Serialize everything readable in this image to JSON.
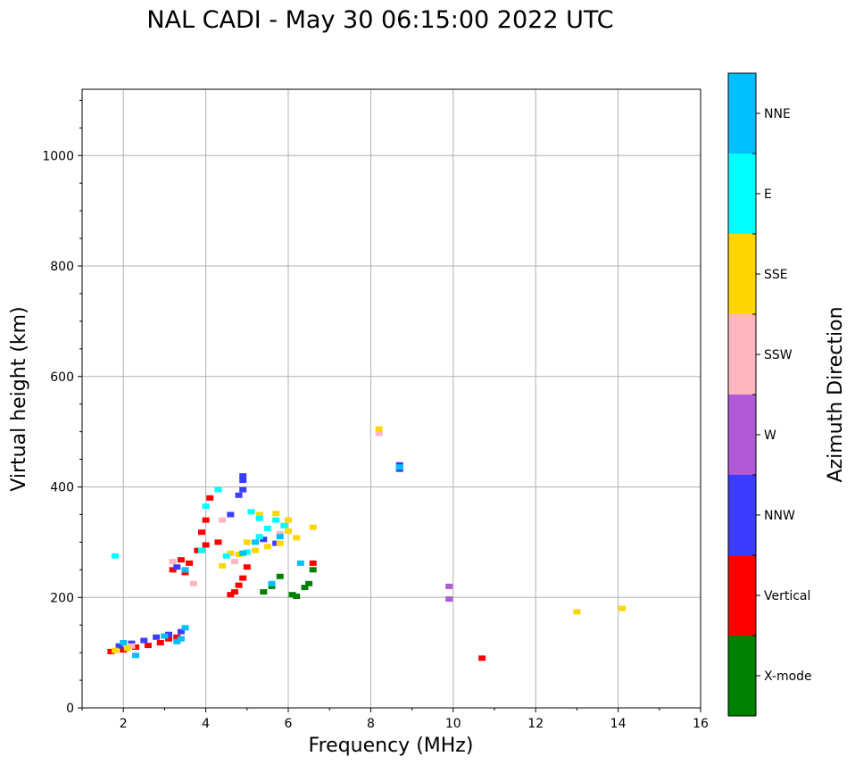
{
  "chart_data": {
    "type": "scatter",
    "title": "NAL CADI - May 30 06:15:00 2022 UTC",
    "xlabel": "Frequency (MHz)",
    "ylabel": "Virtual height (km)",
    "xlim": [
      1,
      16
    ],
    "ylim": [
      0,
      1120
    ],
    "xticks": [
      2,
      4,
      6,
      8,
      10,
      12,
      14,
      16
    ],
    "yticks": [
      0,
      200,
      400,
      600,
      800,
      1000
    ],
    "grid": true,
    "colorbar": {
      "label": "Azimuth Direction",
      "categories": [
        {
          "name": "X-mode",
          "color": "#008000"
        },
        {
          "name": "Vertical",
          "color": "#ff0000"
        },
        {
          "name": "NNW",
          "color": "#3c3cff"
        },
        {
          "name": "W",
          "color": "#b05ad6"
        },
        {
          "name": "SSW",
          "color": "#ffb6c1"
        },
        {
          "name": "SSE",
          "color": "#ffd700"
        },
        {
          "name": "E",
          "color": "#00ffff"
        },
        {
          "name": "NNE",
          "color": "#00bfff"
        }
      ]
    },
    "series": [
      {
        "name": "X-mode",
        "points": [
          [
            5.4,
            210
          ],
          [
            5.6,
            220
          ],
          [
            5.8,
            238
          ],
          [
            6.1,
            205
          ],
          [
            6.4,
            218
          ],
          [
            6.6,
            250
          ],
          [
            6.5,
            225
          ],
          [
            6.2,
            202
          ]
        ]
      },
      {
        "name": "Vertical",
        "points": [
          [
            1.7,
            102
          ],
          [
            2.0,
            105
          ],
          [
            2.3,
            110
          ],
          [
            2.6,
            113
          ],
          [
            2.9,
            118
          ],
          [
            3.1,
            125
          ],
          [
            3.3,
            128
          ],
          [
            3.4,
            268
          ],
          [
            3.6,
            262
          ],
          [
            3.8,
            285
          ],
          [
            4.0,
            295
          ],
          [
            4.1,
            380
          ],
          [
            4.0,
            340
          ],
          [
            4.6,
            205
          ],
          [
            4.7,
            210
          ],
          [
            4.8,
            222
          ],
          [
            4.9,
            235
          ],
          [
            5.0,
            255
          ],
          [
            10.7,
            90
          ],
          [
            6.6,
            262
          ],
          [
            3.5,
            245
          ],
          [
            3.2,
            250
          ],
          [
            4.3,
            300
          ],
          [
            3.9,
            318
          ]
        ]
      },
      {
        "name": "NNW",
        "points": [
          [
            1.9,
            112
          ],
          [
            2.2,
            117
          ],
          [
            2.5,
            122
          ],
          [
            2.8,
            128
          ],
          [
            3.1,
            133
          ],
          [
            3.4,
            138
          ],
          [
            3.3,
            255
          ],
          [
            4.8,
            385
          ],
          [
            4.9,
            395
          ],
          [
            4.9,
            412
          ],
          [
            4.9,
            420
          ],
          [
            8.7,
            432
          ],
          [
            8.7,
            440
          ],
          [
            4.6,
            350
          ],
          [
            5.4,
            305
          ],
          [
            5.7,
            298
          ]
        ]
      },
      {
        "name": "W",
        "points": [
          [
            9.9,
            197
          ],
          [
            9.9,
            220
          ]
        ]
      },
      {
        "name": "SSW",
        "points": [
          [
            8.2,
            497
          ],
          [
            4.4,
            340
          ],
          [
            5.8,
            315
          ],
          [
            4.7,
            265
          ],
          [
            3.7,
            225
          ],
          [
            3.2,
            265
          ],
          [
            2.2,
            112
          ]
        ]
      },
      {
        "name": "SSE",
        "points": [
          [
            13.0,
            174
          ],
          [
            14.1,
            180
          ],
          [
            8.2,
            505
          ],
          [
            4.6,
            280
          ],
          [
            4.8,
            278
          ],
          [
            5.0,
            300
          ],
          [
            5.2,
            285
          ],
          [
            5.5,
            292
          ],
          [
            5.8,
            298
          ],
          [
            6.0,
            320
          ],
          [
            6.2,
            308
          ],
          [
            6.6,
            327
          ],
          [
            5.3,
            350
          ],
          [
            5.7,
            352
          ],
          [
            6.0,
            340
          ],
          [
            1.8,
            104
          ],
          [
            2.1,
            108
          ],
          [
            4.4,
            257
          ]
        ]
      },
      {
        "name": "E",
        "points": [
          [
            4.3,
            395
          ],
          [
            5.1,
            355
          ],
          [
            5.3,
            343
          ],
          [
            5.5,
            325
          ],
          [
            5.7,
            340
          ],
          [
            5.9,
            330
          ],
          [
            4.0,
            365
          ],
          [
            1.8,
            275
          ],
          [
            4.5,
            275
          ],
          [
            5.0,
            282
          ],
          [
            5.3,
            310
          ],
          [
            3.9,
            285
          ]
        ]
      },
      {
        "name": "NNE",
        "points": [
          [
            2.3,
            95
          ],
          [
            2.0,
            118
          ],
          [
            3.4,
            125
          ],
          [
            3.5,
            145
          ],
          [
            3.3,
            120
          ],
          [
            3.0,
            130
          ],
          [
            4.9,
            280
          ],
          [
            5.2,
            300
          ],
          [
            5.6,
            225
          ],
          [
            6.3,
            262
          ],
          [
            5.8,
            310
          ],
          [
            3.5,
            250
          ],
          [
            8.7,
            436
          ]
        ]
      }
    ]
  }
}
